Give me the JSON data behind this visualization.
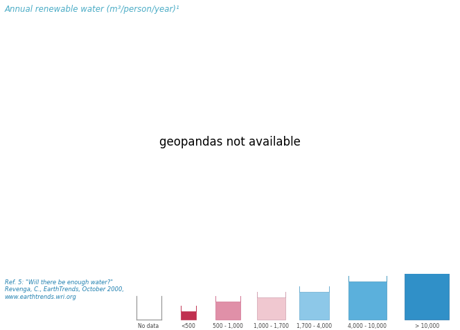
{
  "title": "Annual renewable water (m³/person/year)¹",
  "title_color": "#4BACC6",
  "title_fontsize": 8.5,
  "ref_text": "Ref. 5: \"Will there be enough water?\"\nRevenga, C., EarthTrends, October 2000,\nwww.earthtrends.wri.org",
  "ref_color": "#2080B0",
  "ref_fontsize": 6.0,
  "background_color": "#FFFFFF",
  "legend_labels": [
    "No data",
    "<500",
    "500 - 1,000",
    "1,000 - 1,700",
    "1,700 - 4,000",
    "4,000 - 10,000",
    "> 10,000"
  ],
  "legend_fill_colors": [
    "#FFFFFF",
    "#C03050",
    "#E090A8",
    "#F0C8D0",
    "#8DC8E8",
    "#5BB0DC",
    "#3090C8"
  ],
  "legend_edge_colors": [
    "#999999",
    "#C03050",
    "#D07090",
    "#D0A0B0",
    "#6AACD0",
    "#4498C0",
    "#2070A8"
  ],
  "ocean_color": "#FFFFFF",
  "default_land_color": "#5BB0DC",
  "figsize": [
    6.64,
    4.77
  ],
  "dpi": 100,
  "country_colors": {
    "GRL": "#FFFFFF",
    "ATA": "#FFFFFF",
    "EGY": "#C03050",
    "LBY": "#C03050",
    "SAU": "#C03050",
    "ARE": "#C03050",
    "QAT": "#C03050",
    "KWT": "#C03050",
    "BHR": "#C03050",
    "YEM": "#C03050",
    "JOR": "#C03050",
    "ISR": "#C03050",
    "PSE": "#C03050",
    "TUN": "#C03050",
    "DZA": "#C03050",
    "MAR": "#C03050",
    "MRT": "#C03050",
    "MLI": "#C03050",
    "NER": "#C03050",
    "TCD": "#C03050",
    "SOM": "#C03050",
    "ETH": "#C03050",
    "DJI": "#C03050",
    "ERI": "#C03050",
    "SDN": "#C03050",
    "SSD": "#C03050",
    "IRQ": "#C03050",
    "SYR": "#C03050",
    "LBN": "#C03050",
    "OMN": "#C03050",
    "AFG": "#C03050",
    "PAK": "#C03050",
    "TKM": "#C03050",
    "UZB": "#C03050",
    "KAZ": "#C03050",
    "KGZ": "#C03050",
    "TJK": "#C03050",
    "AZE": "#C03050",
    "ARM": "#C03050",
    "IRN": "#C03050",
    "ESH": "#C03050",
    "ZWE": "#E090A8",
    "BWA": "#E090A8",
    "NAM": "#E090A8",
    "ZAF": "#E090A8",
    "LSO": "#E090A8",
    "SWZ": "#E090A8",
    "MDG": "#E090A8",
    "KEN": "#E090A8",
    "UGA": "#E090A8",
    "HTI": "#E090A8",
    "DOM": "#E090A8",
    "CUB": "#E090A8",
    "MEX": "#E090A8",
    "IND": "#E090A8",
    "CHN": "#E090A8",
    "POL": "#E090A8",
    "DEU": "#E090A8",
    "GBR": "#E090A8",
    "DNK": "#E090A8",
    "NLD": "#E090A8",
    "BEL": "#E090A8",
    "BFA": "#E090A8",
    "GHA": "#E090A8",
    "TGO": "#E090A8",
    "BEN": "#E090A8",
    "NGA": "#E090A8",
    "MOZ": "#E090A8",
    "MWI": "#E090A8",
    "ZMB": "#E090A8",
    "AGO": "#E090A8",
    "TZA": "#E090A8",
    "SEN": "#E090A8",
    "GMB": "#E090A8",
    "SLE": "#E090A8",
    "TUR": "#F0C8D0",
    "ESP": "#F0C8D0",
    "ITA": "#F0C8D0",
    "FRA": "#F0C8D0",
    "UKR": "#F0C8D0",
    "ROU": "#F0C8D0",
    "BGR": "#F0C8D0",
    "HUN": "#F0C8D0",
    "AUT": "#F0C8D0",
    "CZE": "#F0C8D0",
    "SVK": "#F0C8D0",
    "SRB": "#F0C8D0",
    "PRT": "#F0C8D0",
    "PHL": "#F0C8D0",
    "MYS": "#F0C8D0",
    "USA": "#F0C8D0",
    "ARG": "#F0C8D0",
    "CHL": "#F0C8D0",
    "URY": "#F0C8D0",
    "PRY": "#F0C8D0",
    "RWA": "#F0C8D0",
    "BDI": "#F0C8D0",
    "CMR": "#F0C8D0",
    "GNB": "#F0C8D0",
    "GIN": "#F0C8D0",
    "CIV": "#F0C8D0",
    "LBR": "#F0C8D0",
    "GRC": "#F0C8D0",
    "CYP": "#F0C8D0",
    "HRV": "#F0C8D0",
    "MKD": "#F0C8D0",
    "ALB": "#F0C8D0",
    "BIH": "#F0C8D0",
    "MNE": "#F0C8D0",
    "LTU": "#F0C8D0",
    "LVA": "#F0C8D0",
    "EST": "#F0C8D0",
    "BLR": "#F0C8D0",
    "MDA": "#F0C8D0",
    "SVN": "#F0C8D0",
    "CHE": "#F0C8D0",
    "AUS": "#C03050",
    "RUS": "#8DC8E8",
    "CAN": "#8DC8E8",
    "BRA": "#8DC8E8",
    "COD": "#8DC8E8",
    "THA": "#8DC8E8",
    "VNM": "#8DC8E8",
    "IDN": "#8DC8E8",
    "JPN": "#8DC8E8",
    "KOR": "#8DC8E8",
    "NOR": "#8DC8E8",
    "SWE": "#8DC8E8",
    "FIN": "#8DC8E8",
    "NZL": "#8DC8E8",
    "MNG": "#8DC8E8",
    "BGD": "#8DC8E8",
    "NPL": "#8DC8E8",
    "LKA": "#8DC8E8",
    "MMR": "#8DC8E8",
    "PRK": "#8DC8E8",
    "FJI": "#8DC8E8",
    "BOL": "#8DC8E8",
    "GUY": "#8DC8E8",
    "SUR": "#8DC8E8",
    "PAN": "#5BB0DC",
    "CRI": "#5BB0DC",
    "NIC": "#5BB0DC",
    "HND": "#5BB0DC",
    "GTM": "#5BB0DC",
    "BLZ": "#5BB0DC",
    "ECU": "#5BB0DC",
    "COL": "#5BB0DC",
    "VEN": "#5BB0DC",
    "PER": "#5BB0DC",
    "PNG": "#5BB0DC",
    "LAO": "#5BB0DC",
    "KHM": "#5BB0DC",
    "COG": "#5BB0DC",
    "GAB": "#5BB0DC",
    "GNQ": "#5BB0DC",
    "CAF": "#5BB0DC",
    "ISL": "#3090C8",
    "ISL2": "#3090C8"
  }
}
